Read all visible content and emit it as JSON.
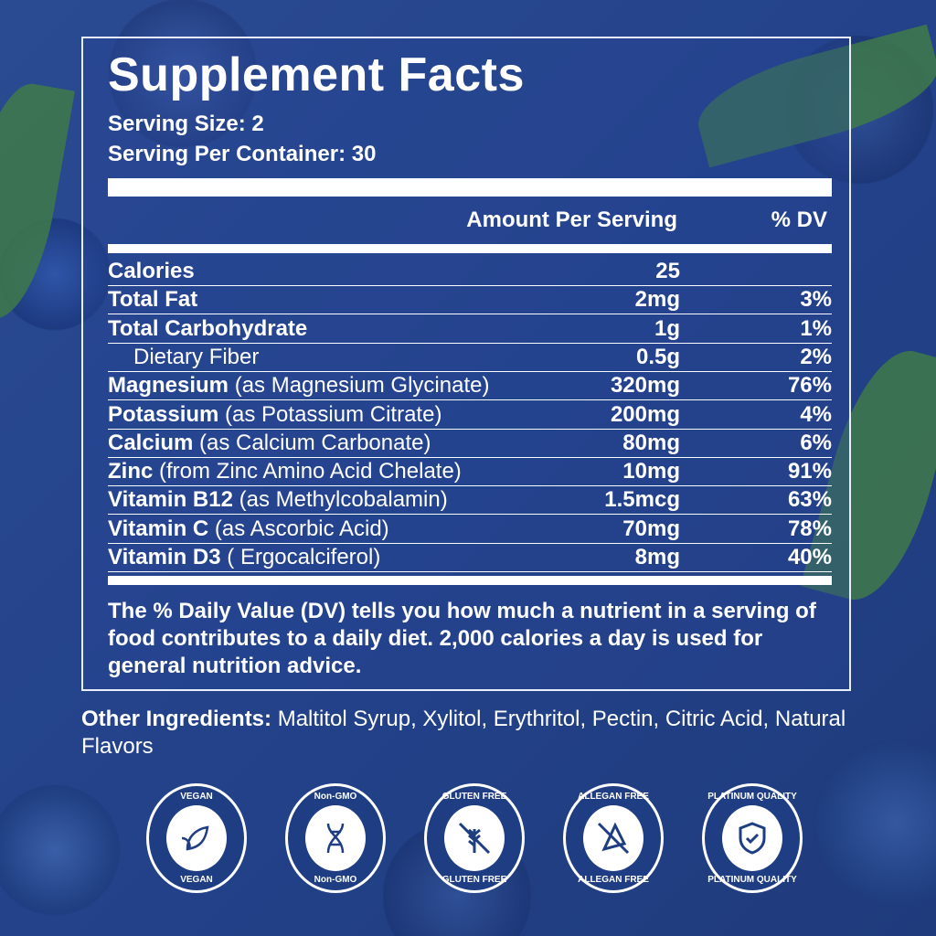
{
  "title": "Supplement Facts",
  "serving_size": "Serving Size: 2",
  "servings_per_container": "Serving Per Container: 30",
  "header": {
    "amount": "Amount Per Serving",
    "dv": "% DV"
  },
  "rows": [
    {
      "name": "Calories",
      "detail": "",
      "amount": "25",
      "dv": ""
    },
    {
      "name": "Total Fat",
      "detail": "",
      "amount": "2mg",
      "dv": "3%"
    },
    {
      "name": "Total Carbohydrate",
      "detail": "",
      "amount": "1g",
      "dv": "1%"
    },
    {
      "name": "",
      "detail": "Dietary Fiber",
      "amount": "0.5g",
      "dv": "2%"
    },
    {
      "name": "Magnesium",
      "detail": " (as Magnesium Glycinate)",
      "amount": "320mg",
      "dv": "76%"
    },
    {
      "name": "Potassium",
      "detail": " (as Potassium Citrate)",
      "amount": "200mg",
      "dv": "4%"
    },
    {
      "name": "Calcium",
      "detail": " (as Calcium Carbonate)",
      "amount": "80mg",
      "dv": "6%"
    },
    {
      "name": "Zinc",
      "detail": " (from Zinc Amino Acid Chelate)",
      "amount": "10mg",
      "dv": "91%"
    },
    {
      "name": "Vitamin B12",
      "detail": " (as Methylcobalamin)",
      "amount": "1.5mcg",
      "dv": "63%"
    },
    {
      "name": "Vitamin C",
      "detail": " (as Ascorbic Acid)",
      "amount": "70mg",
      "dv": "78%"
    },
    {
      "name": "Vitamin D3",
      "detail": " ( Ergocalciferol)",
      "amount": "8mg",
      "dv": "40%"
    }
  ],
  "note": "The % Daily Value (DV) tells you how much a nutrient in a serving of food contributes to a daily diet. 2,000 calories a day is used for general nutrition advice.",
  "other": {
    "label": "Other Ingredients:",
    "text": " Maltitol Syrup, Xylitol, Erythritol, Pectin, Citric Acid, Natural Flavors"
  },
  "badges": [
    {
      "label": "VEGAN",
      "icon": "leaf-icon"
    },
    {
      "label": "Non-GMO",
      "icon": "dna-icon"
    },
    {
      "label": "GLUTEN FREE",
      "icon": "wheat-crossed-icon"
    },
    {
      "label": "ALLEGAN FREE",
      "icon": "allergen-crossed-icon"
    },
    {
      "label": "PLATINUM QUALITY",
      "icon": "shield-check-icon"
    }
  ],
  "colors": {
    "background": "#23428a",
    "text": "#ffffff",
    "leaf": "#3f7a4a"
  }
}
